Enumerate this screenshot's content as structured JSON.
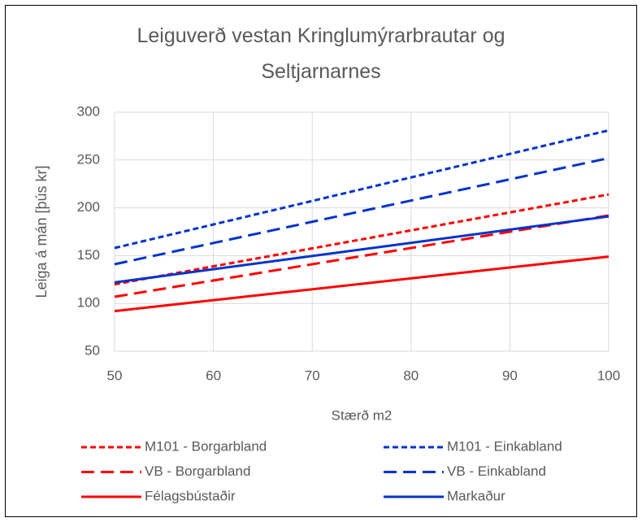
{
  "chart_data": {
    "type": "line",
    "title": "Leiguverð vestan Kringlumýrarbrautar og Seltjarnarnes",
    "x_label": "Stærð  m2",
    "y_label": "Leiga á mán [þús kr]",
    "x": [
      50,
      100
    ],
    "xlim": [
      50,
      100
    ],
    "xticks": [
      50,
      60,
      70,
      80,
      90,
      100
    ],
    "ylim": [
      50,
      300
    ],
    "yticks": [
      50,
      100,
      150,
      200,
      250,
      300
    ],
    "grid": true,
    "legend": "bottom",
    "series": [
      {
        "name": "M101 - Borgarbland",
        "color": "#ff0000",
        "dash": "short",
        "values": [
          120,
          214
        ]
      },
      {
        "name": "M101 - Einkabland",
        "color": "#0033cc",
        "dash": "short",
        "values": [
          158,
          281
        ]
      },
      {
        "name": "VB - Borgarbland",
        "color": "#ff0000",
        "dash": "long",
        "values": [
          107,
          192
        ]
      },
      {
        "name": "VB - Einkabland",
        "color": "#0033cc",
        "dash": "long",
        "values": [
          141,
          252
        ]
      },
      {
        "name": "Félagsbústaðir",
        "color": "#ff0000",
        "dash": "solid",
        "values": [
          92,
          149
        ]
      },
      {
        "name": "Markaður",
        "color": "#0033cc",
        "dash": "solid",
        "values": [
          122,
          191
        ]
      }
    ]
  }
}
